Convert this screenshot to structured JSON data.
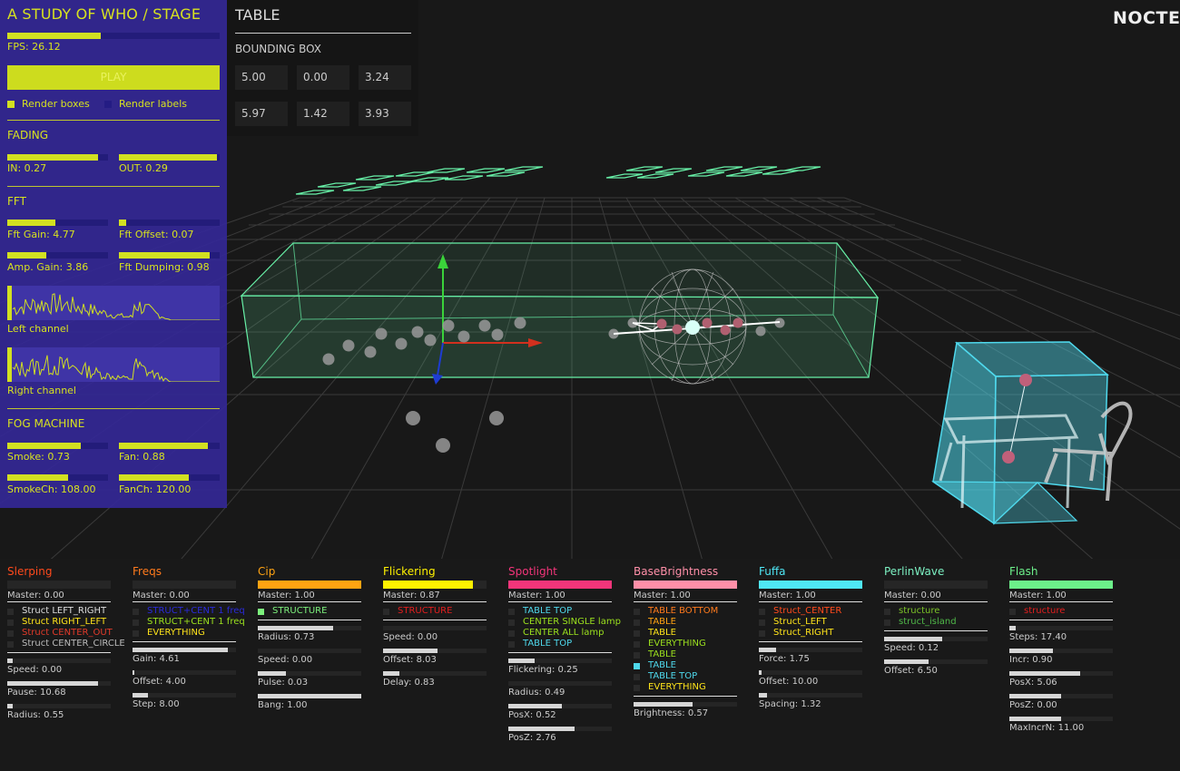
{
  "app": {
    "logo": "NOCTE"
  },
  "side": {
    "title": "A STUDY OF WHO / STAGE",
    "fps_label": "FPS: 26.12",
    "fps_level": 0.44,
    "play_label": "PLAY",
    "render_boxes": "Render boxes",
    "render_labels": "Render labels",
    "fading": {
      "title": "FADING",
      "in_label": "IN: 0.27",
      "in_level": 0.9,
      "out_label": "OUT: 0.29",
      "out_level": 0.97
    },
    "fft": {
      "title": "FFT",
      "gain_label": "Fft Gain: 4.77",
      "gain_level": 0.48,
      "offset_label": "Fft Offset: 0.07",
      "offset_level": 0.07,
      "amp_label": "Amp. Gain: 3.86",
      "amp_level": 0.39,
      "damp_label": "Fft Dumping: 0.98",
      "damp_level": 0.9,
      "left_label": "Left channel",
      "right_label": "Right channel"
    },
    "fog": {
      "title": "FOG MACHINE",
      "smoke_label": "Smoke: 0.73",
      "smoke_level": 0.73,
      "fan_label": "Fan: 0.88",
      "fan_level": 0.88,
      "smokech_label": "SmokeCh: 108.00",
      "smokech_level": 0.6,
      "fanch_label": "FanCh: 120.00",
      "fanch_level": 0.69
    }
  },
  "table": {
    "title": "TABLE",
    "subtitle": "BOUNDING BOX",
    "values": [
      "5.00",
      "0.00",
      "3.24",
      "5.97",
      "1.42",
      "3.93"
    ]
  },
  "colors": {
    "panel": "#3428a0",
    "accent": "#d2e021",
    "box_green": "#67f0a7",
    "box_cyan": "#4fd8ec"
  },
  "effects": [
    {
      "name": "Slerping",
      "color": "#ff4a1c",
      "bar": 0,
      "master": "Master: 0.00",
      "items": [
        [
          "Struct LEFT_RIGHT",
          "#dddddd"
        ],
        [
          "Struct RIGHT_LEFT",
          "#ffe41a"
        ],
        [
          "Struct CENTER_OUT",
          "#e23a2a"
        ],
        [
          "Struct CENTER_CIRCLE",
          "#bbbbbb"
        ]
      ],
      "sliders": [
        [
          "Speed: 0.00",
          0.05
        ],
        [
          "Pause: 10.68",
          0.88
        ],
        [
          "Radius: 0.55",
          0.05
        ]
      ]
    },
    {
      "name": "Freqs",
      "color": "#ff7a1c",
      "bar": 0,
      "master": "Master: 0.00",
      "items": [
        [
          "STRUCT+CENT 1 freq",
          "#2a2ad8"
        ],
        [
          "STRUCT+CENT 1 freq",
          "#9be01e"
        ],
        [
          "EVERYTHING",
          "#ffe41a"
        ]
      ],
      "sliders": [
        [
          "Gain: 4.61",
          0.92
        ],
        [
          "Offset: 4.00",
          0.02
        ],
        [
          "Step: 8.00",
          0.15
        ]
      ]
    },
    {
      "name": "Cip",
      "color": "#ffa312",
      "bar": 1,
      "master": "Master: 1.00",
      "items": [
        [
          "STRUCTURE",
          "#7cf07c"
        ]
      ],
      "sliders": [
        [
          "Radius: 0.73",
          0.73
        ],
        [
          "Speed: 0.00",
          0.0
        ],
        [
          "Pulse: 0.03",
          0.27
        ],
        [
          "Bang: 1.00",
          1.0
        ]
      ]
    },
    {
      "name": "Flickering",
      "color": "#fff200",
      "bar": 0.87,
      "master": "Master: 0.87",
      "items": [
        [
          "STRUCTURE",
          "#e21e1e"
        ]
      ],
      "sliders": [
        [
          "Speed: 0.00",
          0.0
        ],
        [
          "Offset: 8.03",
          0.53
        ],
        [
          "Delay: 0.83",
          0.16
        ]
      ]
    },
    {
      "name": "Spotlight",
      "color": "#f2357a",
      "bar": 1,
      "master": "Master: 1.00",
      "items": [
        [
          "TABLE TOP",
          "#4fd8ec"
        ],
        [
          "CENTER SINGLE lamp",
          "#9be01e"
        ],
        [
          "CENTER ALL lamp",
          "#9be01e"
        ],
        [
          "TABLE TOP",
          "#4fd8ec"
        ]
      ],
      "sliders": [
        [
          "Flickering: 0.25",
          0.25
        ],
        [
          "Radius: 0.49",
          0.0
        ],
        [
          "PosX: 0.52",
          0.52
        ],
        [
          "PosZ: 2.76",
          0.64
        ]
      ]
    },
    {
      "name": "BaseBrightness",
      "color": "#ff8fa8",
      "bar": 1,
      "master": "Master: 1.00",
      "items": [
        [
          "TABLE BOTTOM",
          "#ff7a1c"
        ],
        [
          "TABLE",
          "#ffa312"
        ],
        [
          "TABLE",
          "#ffe41a"
        ],
        [
          "EVERYTHING",
          "#9be01e"
        ],
        [
          "TABLE",
          "#9be01e"
        ],
        [
          "TABLE",
          "#4fd8ec"
        ],
        [
          "TABLE TOP",
          "#4fd8ec"
        ],
        [
          "EVERYTHING",
          "#ffe41a"
        ]
      ],
      "sliders": [
        [
          "Brightness: 0.57",
          0.57
        ]
      ]
    },
    {
      "name": "Fuffa",
      "color": "#4fe7f5",
      "bar": 1,
      "master": "Master: 1.00",
      "items": [
        [
          "Struct_CENTER",
          "#ff4a1c"
        ],
        [
          "Struct_LEFT",
          "#ffe41a"
        ],
        [
          "Struct_RIGHT",
          "#ffe41a"
        ]
      ],
      "sliders": [
        [
          "Force: 1.75",
          0.17
        ],
        [
          "Offset: 10.00",
          0.03
        ],
        [
          "Spacing: 1.32",
          0.08
        ]
      ]
    },
    {
      "name": "PerlinWave",
      "color": "#7cf0c2",
      "bar": 0,
      "master": "Master: 0.00",
      "items": [
        [
          "structure",
          "#7cc428"
        ],
        [
          "struct_island",
          "#4fb848"
        ]
      ],
      "sliders": [
        [
          "Speed: 0.12",
          0.56
        ],
        [
          "Offset: 6.50",
          0.43
        ]
      ]
    },
    {
      "name": "Flash",
      "color": "#6cf08a",
      "bar": 1,
      "master": "Master: 1.00",
      "items": [
        [
          "structure",
          "#e21e1e"
        ]
      ],
      "sliders": [
        [
          "Steps: 17.40",
          0.06
        ],
        [
          "Incr: 0.90",
          0.42
        ],
        [
          "PosX: 5.06",
          0.68
        ],
        [
          "PosZ: 0.00",
          0.5
        ],
        [
          "MaxIncrN: 11.00",
          0.5
        ]
      ]
    }
  ]
}
